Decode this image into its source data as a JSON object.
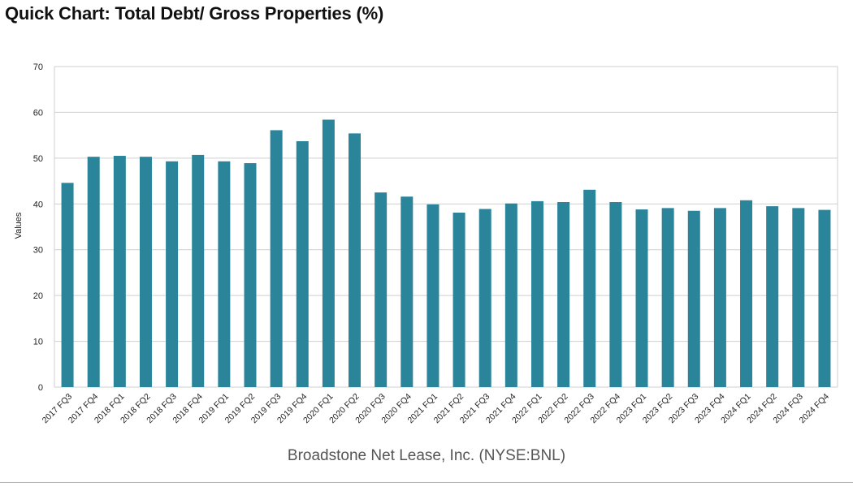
{
  "page": {
    "title": "Quick Chart: Total Debt/ Gross Properties (%)",
    "source": "Broadstone Net Lease, Inc. (NYSE:BNL)"
  },
  "colors": {
    "bar": "#2a849a",
    "grid": "#cfcfcf",
    "text": "#222222"
  },
  "chart_data": {
    "type": "bar",
    "title": "Quick Chart: Total Debt/ Gross Properties (%)",
    "ylabel": "Values",
    "xlabel": "",
    "ylim": [
      0,
      70
    ],
    "yticks": [
      0,
      10,
      20,
      30,
      40,
      50,
      60,
      70
    ],
    "grid": true,
    "categories": [
      "2017 FQ3",
      "2017 FQ4",
      "2018 FQ1",
      "2018 FQ2",
      "2018 FQ3",
      "2018 FQ4",
      "2019 FQ1",
      "2019 FQ2",
      "2019 FQ3",
      "2019 FQ4",
      "2020 FQ1",
      "2020 FQ2",
      "2020 FQ3",
      "2020 FQ4",
      "2021 FQ1",
      "2021 FQ2",
      "2021 FQ3",
      "2021 FQ4",
      "2022 FQ1",
      "2022 FQ2",
      "2022 FQ3",
      "2022 FQ4",
      "2023 FQ1",
      "2023 FQ2",
      "2023 FQ3",
      "2023 FQ4",
      "2024 FQ1",
      "2024 FQ2",
      "2024 FQ3",
      "2024 FQ4"
    ],
    "values": [
      44.6,
      50.3,
      50.5,
      50.3,
      49.3,
      50.7,
      49.3,
      48.9,
      56.1,
      53.7,
      58.4,
      55.4,
      42.5,
      41.6,
      39.9,
      38.1,
      38.9,
      40.1,
      40.6,
      40.4,
      43.1,
      40.4,
      38.8,
      39.1,
      38.5,
      39.1,
      40.8,
      39.5,
      39.1,
      38.7
    ]
  }
}
